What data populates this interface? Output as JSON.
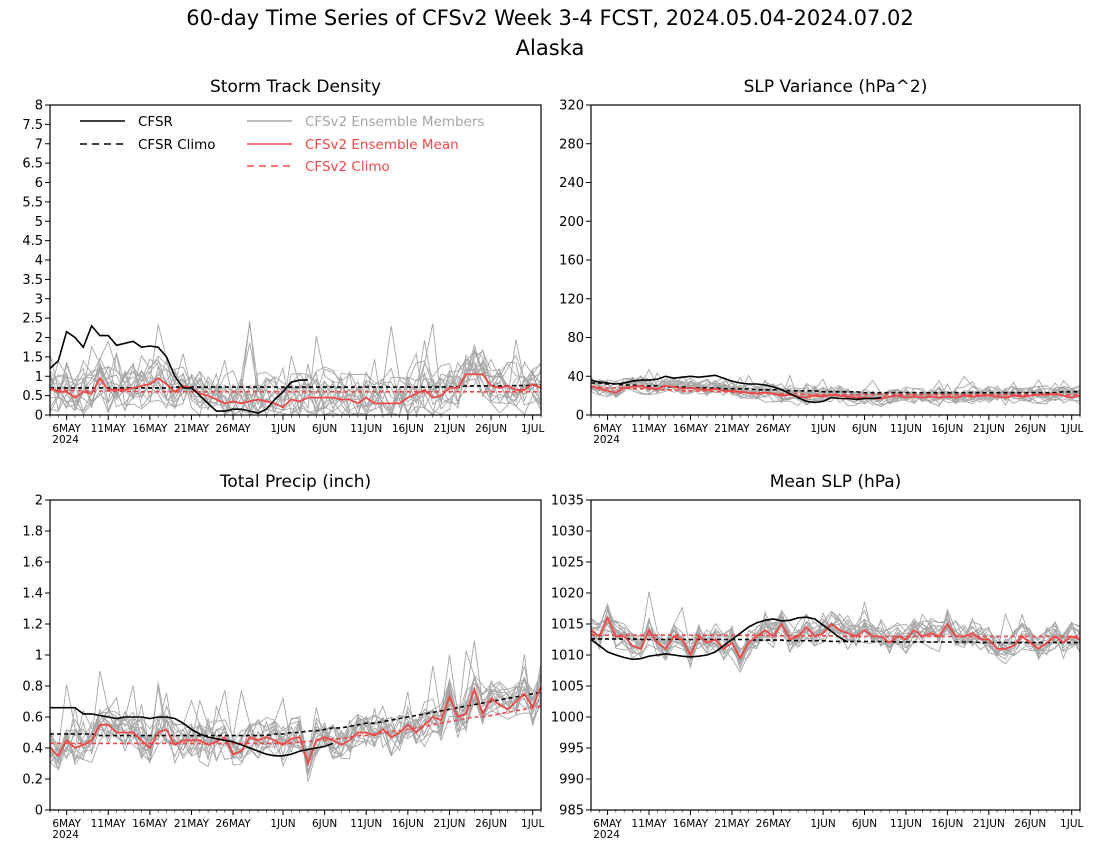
{
  "figure": {
    "title": "60-day Time Series of CFSv2 Week 3-4 FCST, 2024.05.04-2024.07.02",
    "subtitle": "Alaska"
  },
  "colors": {
    "cfsr": "#000000",
    "members": "#a6a6a6",
    "ensemble_mean": "#f04848",
    "cfsv2_climo": "#f04848"
  },
  "legend": {
    "cfsr": "CFSR",
    "cfsr_climo": "CFSR Climo",
    "members": "CFSv2 Ensemble Members",
    "ensemble_mean": "CFSv2 Ensemble Mean",
    "cfsv2_climo": "CFSv2 Climo"
  },
  "chart_data": [
    {
      "type": "line",
      "title": "Storm Track Density",
      "ylim": [
        0,
        8
      ],
      "yticks": [
        "0",
        "0.5",
        "1",
        "1.5",
        "2",
        "2.5",
        "3",
        "3.5",
        "4",
        "4.5",
        "5",
        "5.5",
        "6",
        "6.5",
        "7",
        "7.5",
        "8"
      ],
      "xlim": [
        "2024-05-04",
        "2024-07-02"
      ],
      "xticks": [
        {
          "date": "2024-05-06",
          "label": "6MAY",
          "sublabel": "2024"
        },
        {
          "date": "2024-05-11",
          "label": "11MAY"
        },
        {
          "date": "2024-05-16",
          "label": "16MAY"
        },
        {
          "date": "2024-05-21",
          "label": "21MAY"
        },
        {
          "date": "2024-05-26",
          "label": "26MAY"
        },
        {
          "date": "2024-06-01",
          "label": "1JUN"
        },
        {
          "date": "2024-06-06",
          "label": "6JUN"
        },
        {
          "date": "2024-06-11",
          "label": "11JUN"
        },
        {
          "date": "2024-06-16",
          "label": "16JUN"
        },
        {
          "date": "2024-06-21",
          "label": "21JUN"
        },
        {
          "date": "2024-06-26",
          "label": "26JUN"
        },
        {
          "date": "2024-07-01",
          "label": "1JUL"
        }
      ],
      "legend_visible": true,
      "cfsr": [
        1.2,
        1.4,
        2.15,
        2.0,
        1.75,
        2.3,
        2.05,
        2.05,
        1.8,
        1.85,
        1.9,
        1.75,
        1.78,
        1.75,
        1.5,
        1.0,
        0.7,
        0.7,
        0.5,
        0.3,
        0.1,
        0.1,
        0.15,
        0.15,
        0.1,
        0.05,
        0.15,
        0.4,
        0.6,
        0.85,
        0.9,
        0.9
      ],
      "cfsr_climo": [
        0.7,
        0.7,
        0.7,
        0.7,
        0.7,
        0.7,
        0.7,
        0.7,
        0.7,
        0.7,
        0.7,
        0.7,
        0.7,
        0.7,
        0.7,
        0.72,
        0.72,
        0.72,
        0.72,
        0.72,
        0.72,
        0.72,
        0.72,
        0.72,
        0.72,
        0.72,
        0.72,
        0.72,
        0.72,
        0.72,
        0.72,
        0.72,
        0.72,
        0.72,
        0.72,
        0.72,
        0.72,
        0.72,
        0.72,
        0.72,
        0.72,
        0.72,
        0.72,
        0.72,
        0.72,
        0.72,
        0.72,
        0.72,
        0.72,
        0.72,
        0.75,
        0.75,
        0.75,
        0.75,
        0.75,
        0.75,
        0.76,
        0.76,
        0.77,
        0.78
      ],
      "cfsv2_climo": [
        0.65,
        0.65,
        0.64,
        0.63,
        0.63,
        0.62,
        0.62,
        0.62,
        0.61,
        0.61,
        0.61,
        0.6,
        0.6,
        0.6,
        0.6,
        0.6,
        0.6,
        0.6,
        0.6,
        0.6,
        0.6,
        0.6,
        0.6,
        0.6,
        0.6,
        0.6,
        0.6,
        0.6,
        0.6,
        0.6,
        0.6,
        0.6,
        0.6,
        0.6,
        0.6,
        0.6,
        0.6,
        0.6,
        0.6,
        0.6,
        0.6,
        0.6,
        0.6,
        0.6,
        0.6,
        0.6,
        0.6,
        0.6,
        0.6,
        0.6,
        0.6,
        0.6,
        0.6,
        0.6,
        0.6,
        0.6,
        0.6,
        0.6,
        0.6,
        0.6
      ],
      "ensemble_mean": [
        0.7,
        0.6,
        0.6,
        0.45,
        0.6,
        0.55,
        0.95,
        0.65,
        0.65,
        0.65,
        0.7,
        0.75,
        0.8,
        0.95,
        0.8,
        0.6,
        0.75,
        0.7,
        0.55,
        0.5,
        0.4,
        0.3,
        0.35,
        0.3,
        0.35,
        0.4,
        0.35,
        0.3,
        0.2,
        0.4,
        0.35,
        0.45,
        0.45,
        0.45,
        0.45,
        0.4,
        0.4,
        0.3,
        0.45,
        0.3,
        0.3,
        0.3,
        0.3,
        0.45,
        0.55,
        0.65,
        0.45,
        0.5,
        0.7,
        0.7,
        1.05,
        1.05,
        1.05,
        0.75,
        0.7,
        0.75,
        0.65,
        0.65,
        0.8,
        0.7
      ],
      "members": {
        "count": 16,
        "spread": 0.65,
        "mean_offset": 0.05,
        "spike": 1.6
      }
    },
    {
      "type": "line",
      "title": "SLP Variance (hPa^2)",
      "ylim": [
        0,
        320
      ],
      "yticks": [
        "0",
        "40",
        "80",
        "120",
        "160",
        "200",
        "240",
        "280",
        "320"
      ],
      "xlim": [
        "2024-05-04",
        "2024-07-02"
      ],
      "xticks": [
        {
          "date": "2024-05-06",
          "label": "6MAY",
          "sublabel": "2024"
        },
        {
          "date": "2024-05-11",
          "label": "11MAY"
        },
        {
          "date": "2024-05-16",
          "label": "16MAY"
        },
        {
          "date": "2024-05-21",
          "label": "21MAY"
        },
        {
          "date": "2024-05-26",
          "label": "26MAY"
        },
        {
          "date": "2024-06-01",
          "label": "1JUN"
        },
        {
          "date": "2024-06-06",
          "label": "6JUN"
        },
        {
          "date": "2024-06-11",
          "label": "11JUN"
        },
        {
          "date": "2024-06-16",
          "label": "16JUN"
        },
        {
          "date": "2024-06-21",
          "label": "21JUN"
        },
        {
          "date": "2024-06-26",
          "label": "26JUN"
        },
        {
          "date": "2024-07-01",
          "label": "1JUL"
        }
      ],
      "legend_visible": false,
      "cfsr": [
        36,
        34,
        33,
        32,
        33,
        35,
        36,
        36,
        37,
        40,
        38,
        39,
        40,
        39,
        40,
        41,
        38,
        35,
        33,
        32,
        32,
        31,
        29,
        26,
        22,
        18,
        14,
        13,
        14,
        18,
        17,
        17,
        16,
        17,
        17,
        18
      ],
      "cfsr_climo": [
        33,
        33,
        32,
        32,
        31,
        31,
        30,
        30,
        30,
        29,
        29,
        29,
        28,
        28,
        28,
        28,
        27,
        27,
        27,
        27,
        26,
        26,
        26,
        26,
        25,
        25,
        25,
        25,
        24,
        24,
        24,
        24,
        24,
        23,
        23,
        23,
        23,
        23,
        23,
        23,
        23,
        23,
        23,
        23,
        23,
        23,
        23,
        23,
        23,
        23,
        23,
        23,
        23,
        23,
        23,
        23,
        23,
        24,
        24,
        24
      ],
      "cfsv2_climo": [
        29,
        29,
        28,
        28,
        28,
        27,
        27,
        27,
        26,
        26,
        26,
        25,
        25,
        25,
        25,
        24,
        24,
        24,
        23,
        23,
        23,
        23,
        22,
        22,
        22,
        22,
        21,
        21,
        21,
        21,
        21,
        21,
        21,
        21,
        21,
        21,
        21,
        21,
        21,
        21,
        21,
        21,
        21,
        21,
        21,
        21,
        21,
        21,
        21,
        21,
        21,
        21,
        21,
        21,
        21,
        21,
        21,
        21,
        21,
        21
      ],
      "ensemble_mean": [
        30,
        27,
        25,
        23,
        28,
        29,
        30,
        28,
        27,
        30,
        29,
        27,
        28,
        27,
        26,
        27,
        25,
        25,
        24,
        23,
        22,
        23,
        22,
        20,
        21,
        19,
        18,
        20,
        19,
        21,
        20,
        19,
        18,
        18,
        17,
        17,
        19,
        20,
        18,
        19,
        18,
        19,
        18,
        19,
        18,
        20,
        19,
        20,
        20,
        19,
        18,
        20,
        19,
        20,
        21,
        21,
        22,
        20,
        18,
        20
      ],
      "members": {
        "count": 16,
        "spread": 9,
        "mean_offset": 1,
        "spike": 14
      }
    },
    {
      "type": "line",
      "title": "Total Precip (inch)",
      "ylim": [
        0,
        2
      ],
      "yticks": [
        "0",
        "0.2",
        "0.4",
        "0.6",
        "0.8",
        "1",
        "1.2",
        "1.4",
        "1.6",
        "1.8",
        "2"
      ],
      "xlim": [
        "2024-05-04",
        "2024-07-02"
      ],
      "xticks": [
        {
          "date": "2024-05-06",
          "label": "6MAY",
          "sublabel": "2024"
        },
        {
          "date": "2024-05-11",
          "label": "11MAY"
        },
        {
          "date": "2024-05-16",
          "label": "16MAY"
        },
        {
          "date": "2024-05-21",
          "label": "21MAY"
        },
        {
          "date": "2024-05-26",
          "label": "26MAY"
        },
        {
          "date": "2024-06-01",
          "label": "1JUN"
        },
        {
          "date": "2024-06-06",
          "label": "6JUN"
        },
        {
          "date": "2024-06-11",
          "label": "11JUN"
        },
        {
          "date": "2024-06-16",
          "label": "16JUN"
        },
        {
          "date": "2024-06-21",
          "label": "21JUN"
        },
        {
          "date": "2024-06-26",
          "label": "26JUN"
        },
        {
          "date": "2024-07-01",
          "label": "1JUL"
        }
      ],
      "legend_visible": false,
      "cfsr": [
        0.66,
        0.66,
        0.66,
        0.66,
        0.62,
        0.62,
        0.61,
        0.6,
        0.59,
        0.6,
        0.6,
        0.6,
        0.59,
        0.6,
        0.6,
        0.59,
        0.56,
        0.52,
        0.49,
        0.47,
        0.46,
        0.45,
        0.44,
        0.42,
        0.4,
        0.38,
        0.36,
        0.35,
        0.35,
        0.36,
        0.38,
        0.39,
        0.4,
        0.41,
        0.43
      ],
      "cfsr_climo": [
        0.49,
        0.49,
        0.49,
        0.49,
        0.49,
        0.49,
        0.48,
        0.48,
        0.48,
        0.48,
        0.48,
        0.48,
        0.48,
        0.48,
        0.48,
        0.48,
        0.48,
        0.48,
        0.48,
        0.48,
        0.48,
        0.48,
        0.48,
        0.48,
        0.48,
        0.48,
        0.48,
        0.49,
        0.49,
        0.5,
        0.5,
        0.51,
        0.51,
        0.52,
        0.53,
        0.53,
        0.54,
        0.55,
        0.56,
        0.56,
        0.57,
        0.58,
        0.59,
        0.6,
        0.61,
        0.62,
        0.63,
        0.64,
        0.65,
        0.66,
        0.67,
        0.68,
        0.69,
        0.7,
        0.71,
        0.72,
        0.73,
        0.74,
        0.75,
        0.76
      ],
      "cfsv2_climo": [
        0.43,
        0.43,
        0.43,
        0.43,
        0.43,
        0.43,
        0.43,
        0.43,
        0.43,
        0.43,
        0.43,
        0.43,
        0.43,
        0.43,
        0.43,
        0.43,
        0.43,
        0.43,
        0.43,
        0.43,
        0.43,
        0.43,
        0.43,
        0.43,
        0.43,
        0.43,
        0.43,
        0.43,
        0.43,
        0.43,
        0.44,
        0.44,
        0.45,
        0.45,
        0.46,
        0.46,
        0.47,
        0.48,
        0.48,
        0.49,
        0.5,
        0.51,
        0.51,
        0.52,
        0.53,
        0.54,
        0.55,
        0.56,
        0.57,
        0.58,
        0.59,
        0.6,
        0.6,
        0.61,
        0.62,
        0.63,
        0.64,
        0.65,
        0.66,
        0.67
      ],
      "ensemble_mean": [
        0.4,
        0.35,
        0.45,
        0.4,
        0.42,
        0.45,
        0.55,
        0.55,
        0.5,
        0.5,
        0.5,
        0.45,
        0.4,
        0.5,
        0.52,
        0.42,
        0.45,
        0.45,
        0.45,
        0.42,
        0.44,
        0.47,
        0.36,
        0.38,
        0.47,
        0.45,
        0.47,
        0.45,
        0.42,
        0.46,
        0.47,
        0.3,
        0.45,
        0.47,
        0.45,
        0.42,
        0.45,
        0.5,
        0.5,
        0.48,
        0.52,
        0.47,
        0.5,
        0.55,
        0.5,
        0.55,
        0.6,
        0.58,
        0.73,
        0.6,
        0.62,
        0.78,
        0.62,
        0.72,
        0.68,
        0.65,
        0.7,
        0.75,
        0.66,
        0.8
      ],
      "members": {
        "count": 16,
        "spread": 0.13,
        "mean_offset": 0,
        "spike": 0.3
      }
    },
    {
      "type": "line",
      "title": "Mean SLP (hPa)",
      "ylim": [
        985,
        1035
      ],
      "yticks": [
        "985",
        "990",
        "995",
        "1000",
        "1005",
        "1010",
        "1015",
        "1020",
        "1025",
        "1030",
        "1035"
      ],
      "xlim": [
        "2024-05-04",
        "2024-07-02"
      ],
      "xticks": [
        {
          "date": "2024-05-06",
          "label": "6MAY",
          "sublabel": "2024"
        },
        {
          "date": "2024-05-11",
          "label": "11MAY"
        },
        {
          "date": "2024-05-16",
          "label": "16MAY"
        },
        {
          "date": "2024-05-21",
          "label": "21MAY"
        },
        {
          "date": "2024-05-26",
          "label": "26MAY"
        },
        {
          "date": "2024-06-01",
          "label": "1JUN"
        },
        {
          "date": "2024-06-06",
          "label": "6JUN"
        },
        {
          "date": "2024-06-11",
          "label": "11JUN"
        },
        {
          "date": "2024-06-16",
          "label": "16JUN"
        },
        {
          "date": "2024-06-21",
          "label": "21JUN"
        },
        {
          "date": "2024-06-26",
          "label": "26JUN"
        },
        {
          "date": "2024-07-01",
          "label": "1JUL"
        }
      ],
      "legend_visible": false,
      "cfsr": [
        1012.5,
        1011.5,
        1010.5,
        1010,
        1009.6,
        1009.3,
        1009.4,
        1009.8,
        1010,
        1010.2,
        1010,
        1009.8,
        1009.7,
        1009.8,
        1010,
        1010.5,
        1011.5,
        1012.5,
        1013.5,
        1014.5,
        1015.2,
        1015.6,
        1015.8,
        1015.5,
        1015.6,
        1016,
        1016.1,
        1015.8,
        1014.8,
        1013.8,
        1012.8,
        1012.1
      ],
      "cfsr_climo": [
        1012.6,
        1012.6,
        1012.6,
        1012.6,
        1012.6,
        1012.6,
        1012.5,
        1012.5,
        1012.5,
        1012.5,
        1012.5,
        1012.5,
        1012.5,
        1012.5,
        1012.5,
        1012.5,
        1012.5,
        1012.5,
        1012.5,
        1012.5,
        1012.4,
        1012.4,
        1012.4,
        1012.4,
        1012.3,
        1012.3,
        1012.3,
        1012.3,
        1012.3,
        1012.2,
        1012.2,
        1012.2,
        1012.2,
        1012.2,
        1012.2,
        1012.2,
        1012.2,
        1012.1,
        1012.1,
        1012.1,
        1012.1,
        1012.1,
        1012.1,
        1012.1,
        1012.1,
        1012.1,
        1012.1,
        1012,
        1012,
        1012,
        1012,
        1012,
        1012,
        1012,
        1012,
        1012,
        1012,
        1012,
        1012,
        1012
      ],
      "cfsv2_climo": [
        1013.2,
        1013.2,
        1013.2,
        1013.2,
        1013.2,
        1013.2,
        1013.2,
        1013.2,
        1013.2,
        1013.2,
        1013.2,
        1013.2,
        1013.2,
        1013.2,
        1013.2,
        1013.2,
        1013.2,
        1013.2,
        1013.2,
        1013.2,
        1013.2,
        1013.2,
        1013.1,
        1013.1,
        1013.1,
        1013.1,
        1013.1,
        1013.1,
        1013.1,
        1013.1,
        1013,
        1013,
        1013,
        1013,
        1013,
        1013,
        1013,
        1013,
        1013,
        1013,
        1013,
        1013,
        1013,
        1013,
        1013,
        1013,
        1013,
        1013,
        1013,
        1013,
        1013,
        1013,
        1013,
        1013,
        1013,
        1013,
        1013,
        1013,
        1013,
        1013
      ],
      "ensemble_mean": [
        1014,
        1013,
        1016,
        1013,
        1013,
        1011.5,
        1011,
        1014,
        1012,
        1011,
        1013,
        1012.5,
        1010,
        1013,
        1012,
        1012.5,
        1011,
        1012,
        1009.5,
        1012,
        1013,
        1014,
        1013,
        1015,
        1012.5,
        1013,
        1014.5,
        1013,
        1013.5,
        1015,
        1014,
        1013.5,
        1013,
        1014,
        1013,
        1013,
        1012,
        1013,
        1012.5,
        1014,
        1013,
        1013.5,
        1013,
        1015,
        1013,
        1013,
        1013.5,
        1012.5,
        1012.5,
        1011,
        1011,
        1011.5,
        1013,
        1012,
        1011,
        1012,
        1013,
        1012,
        1013,
        1012.5
      ],
      "members": {
        "count": 16,
        "spread": 2.3,
        "mean_offset": 0,
        "spike": 4
      }
    }
  ]
}
